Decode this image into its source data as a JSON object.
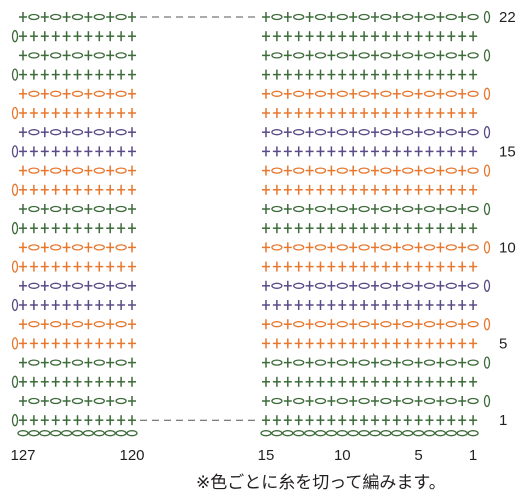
{
  "diagram": {
    "row_labels": [
      "22",
      "15",
      "10",
      "5",
      "1"
    ],
    "stitch_labels": [
      "127",
      "120",
      "15",
      "10",
      "5",
      "1"
    ],
    "note": "※色ごとに糸を切って編みます。",
    "colors": {
      "green": "#3d6b3a",
      "orange": "#e8772e",
      "purple": "#5a4a86",
      "text": "#231f20",
      "dash": "#555555"
    },
    "row_colors": [
      "green",
      "green",
      "green",
      "green",
      "orange",
      "orange",
      "purple",
      "purple",
      "orange",
      "orange",
      "green",
      "green",
      "orange",
      "orange",
      "purple",
      "purple",
      "orange",
      "orange",
      "green",
      "green",
      "green",
      "green"
    ],
    "foundation": "chain",
    "symbols": [
      "single-crochet (+)",
      "chain (o)"
    ]
  }
}
